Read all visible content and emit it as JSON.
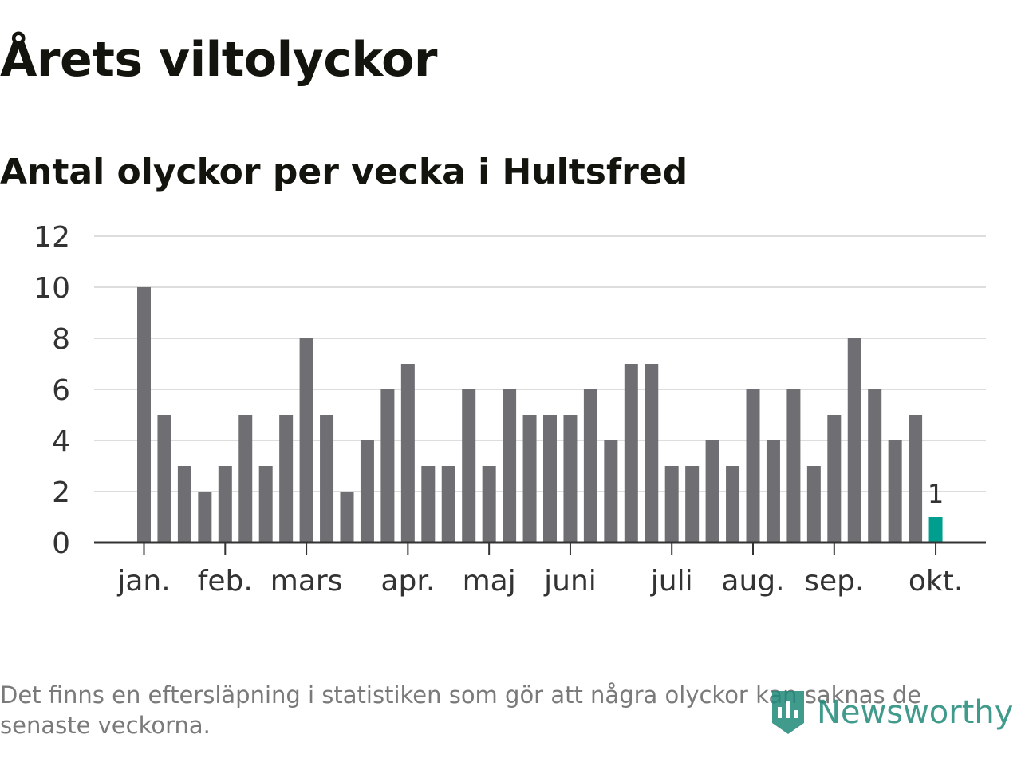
{
  "header": {
    "title": "Årets viltolyckor",
    "subtitle": "Antal olyckor per vecka i Hultsfred"
  },
  "footer": {
    "note": "Det finns en eftersläpning i statistiken som gör att några olyckor kan saknas de senaste veckorna.",
    "brand": "Newsworthy",
    "brand_icon": "newsworthy-logo-icon"
  },
  "colors": {
    "bar": "#6e6e73",
    "highlight": "#009e8e",
    "grid": "#dddddd",
    "axis": "#333333",
    "text": "#333333",
    "brand": "#1f8a7a"
  },
  "chart_data": {
    "type": "bar",
    "title": "Antal olyckor per vecka i Hultsfred",
    "xlabel": "",
    "ylabel": "",
    "ylim": [
      0,
      12
    ],
    "yticks": [
      "0",
      "2",
      "4",
      "6",
      "8",
      "10",
      "12"
    ],
    "grid": true,
    "values": [
      10,
      5,
      3,
      2,
      3,
      5,
      3,
      5,
      8,
      5,
      2,
      4,
      6,
      7,
      3,
      3,
      6,
      3,
      6,
      5,
      5,
      5,
      6,
      4,
      7,
      7,
      3,
      3,
      4,
      3,
      6,
      4,
      6,
      3,
      5,
      8,
      6,
      4,
      5,
      1
    ],
    "highlight_index": 39,
    "highlight_label": "1",
    "month_labels": [
      {
        "label": "jan.",
        "week": 1
      },
      {
        "label": "feb.",
        "week": 5
      },
      {
        "label": "mars",
        "week": 9
      },
      {
        "label": "apr.",
        "week": 14
      },
      {
        "label": "maj",
        "week": 18
      },
      {
        "label": "juni",
        "week": 22
      },
      {
        "label": "juli",
        "week": 27
      },
      {
        "label": "aug.",
        "week": 31
      },
      {
        "label": "sep.",
        "week": 35
      },
      {
        "label": "okt.",
        "week": 40
      }
    ]
  }
}
